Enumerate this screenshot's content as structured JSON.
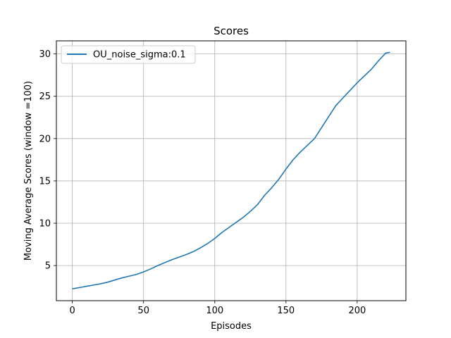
{
  "chart_data": {
    "type": "line",
    "title": "Scores",
    "xlabel": "Episodes",
    "ylabel": "Moving Average Scores (window =100)",
    "xlim": [
      -11.2,
      234.2
    ],
    "ylim": [
      0.85,
      31.55
    ],
    "xticks": [
      0,
      50,
      100,
      150,
      200
    ],
    "yticks": [
      5,
      10,
      15,
      20,
      25,
      30
    ],
    "grid": true,
    "legend_position": "top-left",
    "series": [
      {
        "name": "OU_noise_sigma:0.1",
        "color": "#1f77b4",
        "x": [
          0,
          5,
          10,
          15,
          20,
          25,
          30,
          35,
          40,
          45,
          50,
          55,
          60,
          65,
          70,
          75,
          80,
          85,
          90,
          95,
          100,
          105,
          110,
          115,
          120,
          125,
          130,
          135,
          140,
          145,
          150,
          155,
          160,
          165,
          170,
          175,
          180,
          185,
          190,
          195,
          200,
          205,
          210,
          215,
          220,
          223
        ],
        "y": [
          2.25,
          2.4,
          2.55,
          2.7,
          2.85,
          3.05,
          3.3,
          3.55,
          3.75,
          3.95,
          4.25,
          4.6,
          5.0,
          5.35,
          5.7,
          6.0,
          6.3,
          6.65,
          7.1,
          7.6,
          8.2,
          8.9,
          9.5,
          10.1,
          10.7,
          11.4,
          12.2,
          13.3,
          14.2,
          15.2,
          16.4,
          17.5,
          18.4,
          19.2,
          20.0,
          21.3,
          22.6,
          23.9,
          24.8,
          25.7,
          26.6,
          27.4,
          28.2,
          29.2,
          30.1,
          30.2
        ]
      }
    ]
  }
}
